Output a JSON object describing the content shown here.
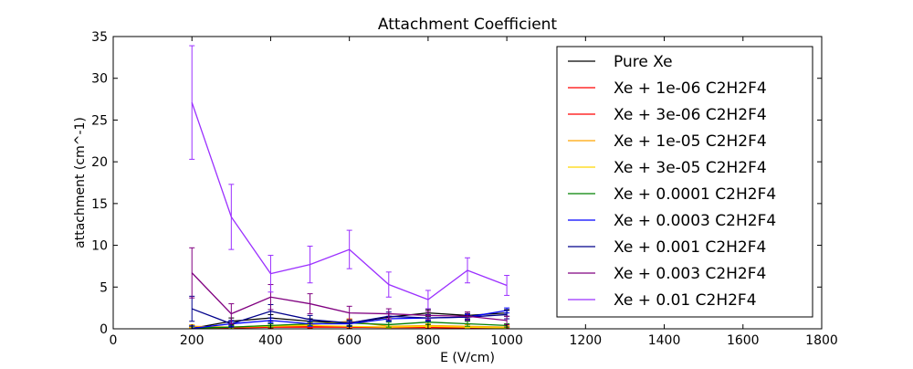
{
  "chart_data": {
    "type": "line",
    "title": "Attachment Coefficient",
    "xlabel": "E (V/cm)",
    "ylabel": "attachment (cm^-1)",
    "xlim": [
      0,
      1800
    ],
    "ylim": [
      0,
      35
    ],
    "xticks": [
      0,
      200,
      400,
      600,
      800,
      1000,
      1200,
      1400,
      1600,
      1800
    ],
    "yticks": [
      0,
      5,
      10,
      15,
      20,
      25,
      30,
      35
    ],
    "grid": false,
    "legend_position": "top-right",
    "x": [
      200,
      300,
      400,
      500,
      600,
      700,
      800,
      900,
      1000
    ],
    "series": [
      {
        "name": "Pure Xe",
        "color": "#000000",
        "values": [
          0.05,
          0.9,
          1.3,
          0.9,
          0.7,
          1.4,
          1.9,
          1.6,
          1.9
        ],
        "errors": [
          0.3,
          0.4,
          0.4,
          0.3,
          0.3,
          0.4,
          0.4,
          0.4,
          0.4
        ]
      },
      {
        "name": "Xe + 1e-06 C2H2F4",
        "color": "#ff0000",
        "values": [
          0.05,
          0.1,
          0.2,
          0.2,
          0.2,
          0.15,
          0.15,
          0.1,
          0.1
        ],
        "errors": [
          0.1,
          0.1,
          0.1,
          0.1,
          0.1,
          0.1,
          0.1,
          0.1,
          0.1
        ]
      },
      {
        "name": "Xe + 3e-06 C2H2F4",
        "color": "#ff0000",
        "values": [
          0.1,
          0.15,
          0.25,
          0.3,
          0.25,
          0.2,
          0.2,
          0.15,
          0.15
        ],
        "errors": [
          0.1,
          0.1,
          0.1,
          0.1,
          0.1,
          0.1,
          0.1,
          0.1,
          0.1
        ]
      },
      {
        "name": "Xe + 1e-05 C2H2F4",
        "color": "#ffa500",
        "values": [
          0.3,
          0.2,
          0.4,
          0.5,
          0.9,
          0.3,
          0.4,
          0.3,
          0.2
        ],
        "errors": [
          0.2,
          0.2,
          0.2,
          0.2,
          0.3,
          0.2,
          0.2,
          0.2,
          0.2
        ]
      },
      {
        "name": "Xe + 3e-05 C2H2F4",
        "color": "#ffd700",
        "values": [
          0.1,
          0.2,
          0.3,
          0.4,
          0.3,
          0.2,
          0.3,
          0.2,
          0.1
        ],
        "errors": [
          0.1,
          0.1,
          0.1,
          0.1,
          0.1,
          0.1,
          0.1,
          0.1,
          0.1
        ]
      },
      {
        "name": "Xe + 0.0001 C2H2F4",
        "color": "#008000",
        "values": [
          0.1,
          0.2,
          0.4,
          0.6,
          0.7,
          0.5,
          0.8,
          0.6,
          0.4
        ],
        "errors": [
          0.2,
          0.2,
          0.2,
          0.2,
          0.3,
          0.3,
          0.3,
          0.3,
          0.2
        ]
      },
      {
        "name": "Xe + 0.0003 C2H2F4",
        "color": "#0000ff",
        "values": [
          0.05,
          0.6,
          1.0,
          0.6,
          0.6,
          1.2,
          1.3,
          1.4,
          2.2
        ],
        "errors": [
          0.3,
          0.3,
          0.3,
          0.3,
          0.3,
          0.3,
          0.3,
          0.3,
          0.3
        ]
      },
      {
        "name": "Xe + 0.001 C2H2F4",
        "color": "#00008b",
        "values": [
          2.4,
          0.6,
          2.1,
          1.1,
          0.7,
          1.5,
          1.3,
          1.4,
          1.7
        ],
        "errors": [
          1.5,
          0.4,
          0.8,
          0.5,
          0.4,
          0.5,
          0.4,
          0.4,
          0.5
        ]
      },
      {
        "name": "Xe + 0.003 C2H2F4",
        "color": "#800080",
        "values": [
          6.7,
          1.8,
          3.8,
          3.0,
          1.9,
          1.8,
          1.6,
          1.5,
          1.0
        ],
        "errors": [
          3.0,
          1.2,
          1.5,
          1.2,
          0.8,
          0.6,
          0.5,
          0.5,
          0.5
        ]
      },
      {
        "name": "Xe + 0.01 C2H2F4",
        "color": "#9b30ff",
        "values": [
          27.1,
          13.4,
          6.6,
          7.7,
          9.5,
          5.3,
          3.5,
          7.0,
          5.2
        ],
        "errors": [
          6.8,
          3.9,
          2.2,
          2.2,
          2.3,
          1.5,
          1.1,
          1.5,
          1.2
        ]
      }
    ]
  }
}
